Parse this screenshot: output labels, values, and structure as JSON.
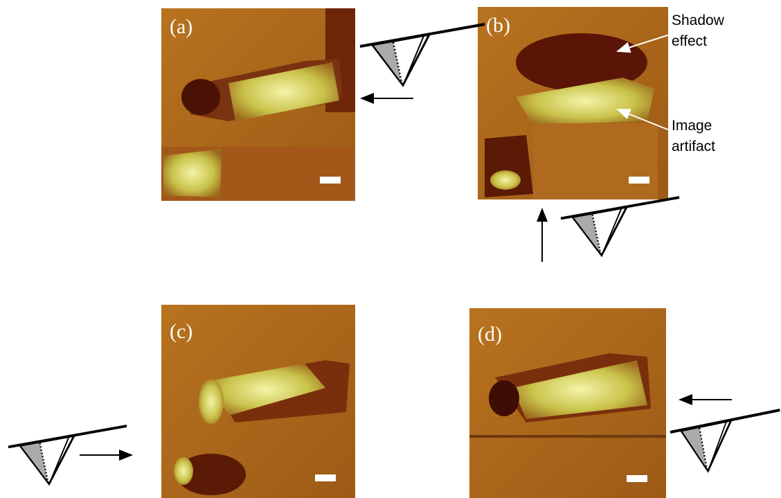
{
  "panels": [
    {
      "label": "(a)"
    },
    {
      "label": "(b)"
    },
    {
      "label": "(c)"
    },
    {
      "label": "(d)"
    }
  ],
  "annotations": [
    {
      "lines": [
        "Shadow",
        "effect"
      ]
    },
    {
      "lines": [
        "Image",
        "artifact"
      ]
    }
  ]
}
